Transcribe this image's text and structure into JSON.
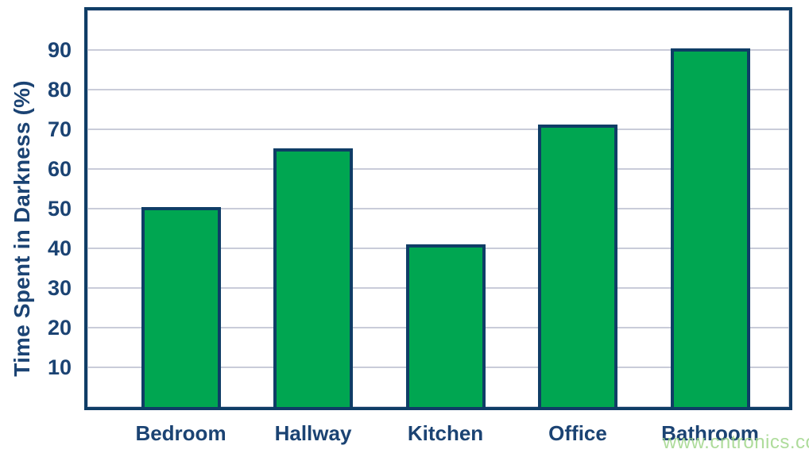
{
  "chart_data": {
    "type": "bar",
    "categories": [
      "Bedroom",
      "Hallway",
      "Kitchen",
      "Office",
      "Bathroom"
    ],
    "values": [
      50.5,
      65.3,
      41,
      71.2,
      90.5
    ],
    "title": "",
    "xlabel": "",
    "ylabel": "Time Spent in Darkness (%)",
    "yticks": [
      10,
      20,
      30,
      40,
      50,
      60,
      70,
      80,
      90
    ],
    "ylim": [
      0,
      100
    ],
    "grid": true,
    "legend_position": "none",
    "colors": {
      "bar_fill": "#00A651",
      "bar_border": "#0F3D66",
      "axis_frame": "#0F3D66",
      "gridline": "#C9CCD9",
      "tick_label": "#1B4373",
      "category_label": "#1B4373",
      "axis_title": "#1B4373"
    }
  },
  "watermark": {
    "text": "www.cntronics.com",
    "color": "#A0D68A"
  }
}
